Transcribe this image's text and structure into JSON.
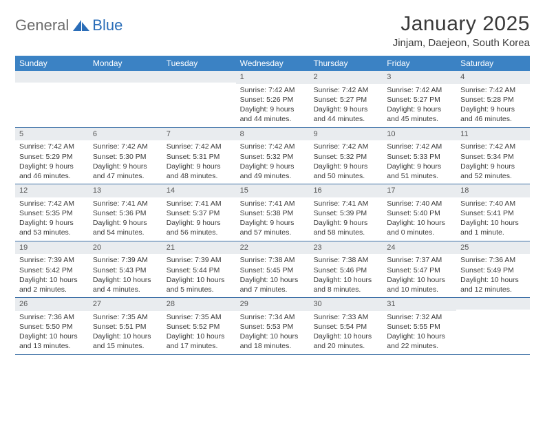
{
  "logo": {
    "text_dark": "General",
    "text_blue": "Blue"
  },
  "title": "January 2025",
  "location": "Jinjam, Daejeon, South Korea",
  "colors": {
    "header_bg": "#3b82c4",
    "header_text": "#ffffff",
    "daynum_bg": "#e9ecef",
    "week_border": "#3b6ea5",
    "body_text": "#3a3a3a",
    "logo_dark": "#6c6c6c",
    "logo_blue": "#2a6db8"
  },
  "fonts": {
    "title_size": 30,
    "location_size": 15,
    "weekday_size": 12,
    "daynum_size": 11,
    "body_size": 10.5
  },
  "weekdays": [
    "Sunday",
    "Monday",
    "Tuesday",
    "Wednesday",
    "Thursday",
    "Friday",
    "Saturday"
  ],
  "weeks": [
    [
      null,
      null,
      null,
      {
        "n": "1",
        "sr": "Sunrise: 7:42 AM",
        "ss": "Sunset: 5:26 PM",
        "d1": "Daylight: 9 hours",
        "d2": "and 44 minutes."
      },
      {
        "n": "2",
        "sr": "Sunrise: 7:42 AM",
        "ss": "Sunset: 5:27 PM",
        "d1": "Daylight: 9 hours",
        "d2": "and 44 minutes."
      },
      {
        "n": "3",
        "sr": "Sunrise: 7:42 AM",
        "ss": "Sunset: 5:27 PM",
        "d1": "Daylight: 9 hours",
        "d2": "and 45 minutes."
      },
      {
        "n": "4",
        "sr": "Sunrise: 7:42 AM",
        "ss": "Sunset: 5:28 PM",
        "d1": "Daylight: 9 hours",
        "d2": "and 46 minutes."
      }
    ],
    [
      {
        "n": "5",
        "sr": "Sunrise: 7:42 AM",
        "ss": "Sunset: 5:29 PM",
        "d1": "Daylight: 9 hours",
        "d2": "and 46 minutes."
      },
      {
        "n": "6",
        "sr": "Sunrise: 7:42 AM",
        "ss": "Sunset: 5:30 PM",
        "d1": "Daylight: 9 hours",
        "d2": "and 47 minutes."
      },
      {
        "n": "7",
        "sr": "Sunrise: 7:42 AM",
        "ss": "Sunset: 5:31 PM",
        "d1": "Daylight: 9 hours",
        "d2": "and 48 minutes."
      },
      {
        "n": "8",
        "sr": "Sunrise: 7:42 AM",
        "ss": "Sunset: 5:32 PM",
        "d1": "Daylight: 9 hours",
        "d2": "and 49 minutes."
      },
      {
        "n": "9",
        "sr": "Sunrise: 7:42 AM",
        "ss": "Sunset: 5:32 PM",
        "d1": "Daylight: 9 hours",
        "d2": "and 50 minutes."
      },
      {
        "n": "10",
        "sr": "Sunrise: 7:42 AM",
        "ss": "Sunset: 5:33 PM",
        "d1": "Daylight: 9 hours",
        "d2": "and 51 minutes."
      },
      {
        "n": "11",
        "sr": "Sunrise: 7:42 AM",
        "ss": "Sunset: 5:34 PM",
        "d1": "Daylight: 9 hours",
        "d2": "and 52 minutes."
      }
    ],
    [
      {
        "n": "12",
        "sr": "Sunrise: 7:42 AM",
        "ss": "Sunset: 5:35 PM",
        "d1": "Daylight: 9 hours",
        "d2": "and 53 minutes."
      },
      {
        "n": "13",
        "sr": "Sunrise: 7:41 AM",
        "ss": "Sunset: 5:36 PM",
        "d1": "Daylight: 9 hours",
        "d2": "and 54 minutes."
      },
      {
        "n": "14",
        "sr": "Sunrise: 7:41 AM",
        "ss": "Sunset: 5:37 PM",
        "d1": "Daylight: 9 hours",
        "d2": "and 56 minutes."
      },
      {
        "n": "15",
        "sr": "Sunrise: 7:41 AM",
        "ss": "Sunset: 5:38 PM",
        "d1": "Daylight: 9 hours",
        "d2": "and 57 minutes."
      },
      {
        "n": "16",
        "sr": "Sunrise: 7:41 AM",
        "ss": "Sunset: 5:39 PM",
        "d1": "Daylight: 9 hours",
        "d2": "and 58 minutes."
      },
      {
        "n": "17",
        "sr": "Sunrise: 7:40 AM",
        "ss": "Sunset: 5:40 PM",
        "d1": "Daylight: 10 hours",
        "d2": "and 0 minutes."
      },
      {
        "n": "18",
        "sr": "Sunrise: 7:40 AM",
        "ss": "Sunset: 5:41 PM",
        "d1": "Daylight: 10 hours",
        "d2": "and 1 minute."
      }
    ],
    [
      {
        "n": "19",
        "sr": "Sunrise: 7:39 AM",
        "ss": "Sunset: 5:42 PM",
        "d1": "Daylight: 10 hours",
        "d2": "and 2 minutes."
      },
      {
        "n": "20",
        "sr": "Sunrise: 7:39 AM",
        "ss": "Sunset: 5:43 PM",
        "d1": "Daylight: 10 hours",
        "d2": "and 4 minutes."
      },
      {
        "n": "21",
        "sr": "Sunrise: 7:39 AM",
        "ss": "Sunset: 5:44 PM",
        "d1": "Daylight: 10 hours",
        "d2": "and 5 minutes."
      },
      {
        "n": "22",
        "sr": "Sunrise: 7:38 AM",
        "ss": "Sunset: 5:45 PM",
        "d1": "Daylight: 10 hours",
        "d2": "and 7 minutes."
      },
      {
        "n": "23",
        "sr": "Sunrise: 7:38 AM",
        "ss": "Sunset: 5:46 PM",
        "d1": "Daylight: 10 hours",
        "d2": "and 8 minutes."
      },
      {
        "n": "24",
        "sr": "Sunrise: 7:37 AM",
        "ss": "Sunset: 5:47 PM",
        "d1": "Daylight: 10 hours",
        "d2": "and 10 minutes."
      },
      {
        "n": "25",
        "sr": "Sunrise: 7:36 AM",
        "ss": "Sunset: 5:49 PM",
        "d1": "Daylight: 10 hours",
        "d2": "and 12 minutes."
      }
    ],
    [
      {
        "n": "26",
        "sr": "Sunrise: 7:36 AM",
        "ss": "Sunset: 5:50 PM",
        "d1": "Daylight: 10 hours",
        "d2": "and 13 minutes."
      },
      {
        "n": "27",
        "sr": "Sunrise: 7:35 AM",
        "ss": "Sunset: 5:51 PM",
        "d1": "Daylight: 10 hours",
        "d2": "and 15 minutes."
      },
      {
        "n": "28",
        "sr": "Sunrise: 7:35 AM",
        "ss": "Sunset: 5:52 PM",
        "d1": "Daylight: 10 hours",
        "d2": "and 17 minutes."
      },
      {
        "n": "29",
        "sr": "Sunrise: 7:34 AM",
        "ss": "Sunset: 5:53 PM",
        "d1": "Daylight: 10 hours",
        "d2": "and 18 minutes."
      },
      {
        "n": "30",
        "sr": "Sunrise: 7:33 AM",
        "ss": "Sunset: 5:54 PM",
        "d1": "Daylight: 10 hours",
        "d2": "and 20 minutes."
      },
      {
        "n": "31",
        "sr": "Sunrise: 7:32 AM",
        "ss": "Sunset: 5:55 PM",
        "d1": "Daylight: 10 hours",
        "d2": "and 22 minutes."
      },
      null
    ]
  ]
}
